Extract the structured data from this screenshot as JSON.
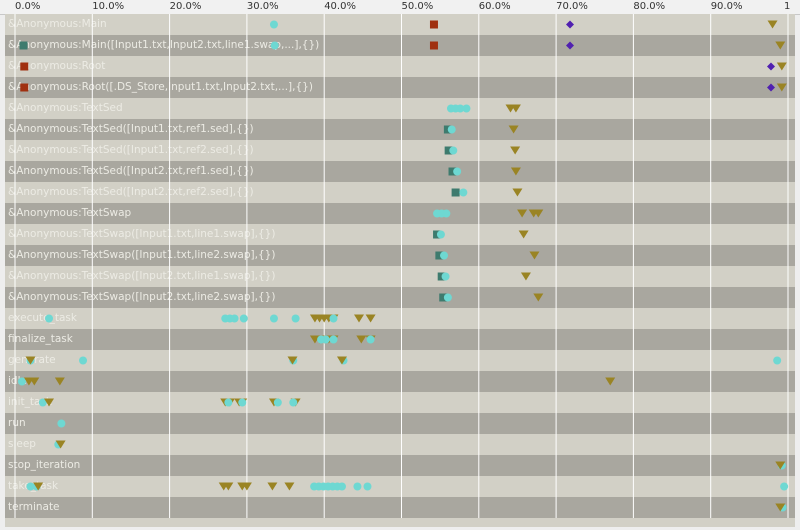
{
  "axis": {
    "ticks": [
      "0.0%",
      "10.0%",
      "20.0%",
      "30.0%",
      "40.0%",
      "50.0%",
      "60.0%",
      "70.0%",
      "80.0%",
      "90.0%",
      "1"
    ],
    "tick_values": [
      0,
      0.1,
      0.2,
      0.3,
      0.4,
      0.5,
      0.6,
      0.7,
      0.8,
      0.9,
      1.0
    ]
  },
  "colors": {
    "cyan": "#6ed8d2",
    "teal": "#3e7b6e",
    "gold": "#9a8424",
    "red": "#a03010",
    "purple": "#5020b0",
    "row_light": "#d2d0c6",
    "row_dark": "#a9a79f",
    "grid": "#ffffff",
    "label": "#ecebe4"
  },
  "rows": [
    {
      "label": "&Anonymous:Main",
      "marks": [
        {
          "s": "circle",
          "c": "cyan",
          "v": [
            0.335
          ]
        },
        {
          "s": "square",
          "c": "red",
          "v": [
            0.542
          ]
        },
        {
          "s": "diamond",
          "c": "purple",
          "v": [
            0.718
          ]
        },
        {
          "s": "triangle",
          "c": "gold",
          "v": [
            0.98
          ]
        }
      ]
    },
    {
      "label": "&Anonymous:Main([Input1.txt,Input2.txt,line1.swap,...],{})",
      "marks": [
        {
          "s": "square",
          "c": "teal",
          "v": [
            0.011
          ]
        },
        {
          "s": "circle",
          "c": "cyan",
          "v": [
            0.336
          ]
        },
        {
          "s": "square",
          "c": "red",
          "v": [
            0.542
          ]
        },
        {
          "s": "diamond",
          "c": "purple",
          "v": [
            0.718
          ]
        },
        {
          "s": "triangle",
          "c": "gold",
          "v": [
            0.99
          ]
        }
      ]
    },
    {
      "label": "&Anonymous:Root",
      "marks": [
        {
          "s": "square",
          "c": "red",
          "v": [
            0.012
          ]
        },
        {
          "s": "diamond",
          "c": "purple",
          "v": [
            0.978
          ]
        },
        {
          "s": "triangle",
          "c": "gold",
          "v": [
            0.992
          ]
        }
      ]
    },
    {
      "label": "&Anonymous:Root([.DS_Store,Input1.txt,Input2.txt,...],{})",
      "marks": [
        {
          "s": "square",
          "c": "red",
          "v": [
            0.012
          ]
        },
        {
          "s": "diamond",
          "c": "purple",
          "v": [
            0.978
          ]
        },
        {
          "s": "triangle",
          "c": "gold",
          "v": [
            0.992
          ]
        }
      ]
    },
    {
      "label": "&Anonymous:TextSed",
      "marks": [
        {
          "s": "circle",
          "c": "cyan",
          "v": [
            0.564,
            0.57,
            0.576,
            0.584
          ]
        },
        {
          "s": "triangle",
          "c": "gold",
          "v": [
            0.641,
            0.648
          ]
        }
      ]
    },
    {
      "label": "&Anonymous:TextSed([Input1.txt,ref1.sed],{})",
      "marks": [
        {
          "s": "square",
          "c": "teal",
          "v": [
            0.56
          ]
        },
        {
          "s": "circle",
          "c": "cyan",
          "v": [
            0.565
          ]
        },
        {
          "s": "triangle",
          "c": "gold",
          "v": [
            0.645
          ]
        }
      ]
    },
    {
      "label": "&Anonymous:TextSed([Input1.txt,ref2.sed],{})",
      "marks": [
        {
          "s": "square",
          "c": "teal",
          "v": [
            0.561
          ]
        },
        {
          "s": "circle",
          "c": "cyan",
          "v": [
            0.567
          ]
        },
        {
          "s": "triangle",
          "c": "gold",
          "v": [
            0.647
          ]
        }
      ]
    },
    {
      "label": "&Anonymous:TextSed([Input2.txt,ref1.sed],{})",
      "marks": [
        {
          "s": "square",
          "c": "teal",
          "v": [
            0.566
          ]
        },
        {
          "s": "circle",
          "c": "cyan",
          "v": [
            0.572
          ]
        },
        {
          "s": "triangle",
          "c": "gold",
          "v": [
            0.648
          ]
        }
      ]
    },
    {
      "label": "&Anonymous:TextSed([Input2.txt,ref2.sed],{})",
      "marks": [
        {
          "s": "square",
          "c": "teal",
          "v": [
            0.57
          ]
        },
        {
          "s": "circle",
          "c": "cyan",
          "v": [
            0.58
          ]
        },
        {
          "s": "triangle",
          "c": "gold",
          "v": [
            0.65
          ]
        }
      ]
    },
    {
      "label": "&Anonymous:TextSwap",
      "marks": [
        {
          "s": "circle",
          "c": "cyan",
          "v": [
            0.546,
            0.552,
            0.558
          ]
        },
        {
          "s": "triangle",
          "c": "gold",
          "v": [
            0.656,
            0.671,
            0.677
          ]
        }
      ]
    },
    {
      "label": "&Anonymous:TextSwap([Input1.txt,line1.swap],{})",
      "marks": [
        {
          "s": "square",
          "c": "teal",
          "v": [
            0.546
          ]
        },
        {
          "s": "circle",
          "c": "cyan",
          "v": [
            0.551
          ]
        },
        {
          "s": "triangle",
          "c": "gold",
          "v": [
            0.658
          ]
        }
      ]
    },
    {
      "label": "&Anonymous:TextSwap([Input1.txt,line2.swap],{})",
      "marks": [
        {
          "s": "square",
          "c": "teal",
          "v": [
            0.549
          ]
        },
        {
          "s": "circle",
          "c": "cyan",
          "v": [
            0.555
          ]
        },
        {
          "s": "triangle",
          "c": "gold",
          "v": [
            0.672
          ]
        }
      ]
    },
    {
      "label": "&Anonymous:TextSwap([Input2.txt,line1.swap],{})",
      "marks": [
        {
          "s": "square",
          "c": "teal",
          "v": [
            0.552
          ]
        },
        {
          "s": "circle",
          "c": "cyan",
          "v": [
            0.557
          ]
        },
        {
          "s": "triangle",
          "c": "gold",
          "v": [
            0.661
          ]
        }
      ]
    },
    {
      "label": "&Anonymous:TextSwap([Input2.txt,line2.swap],{})",
      "marks": [
        {
          "s": "square",
          "c": "teal",
          "v": [
            0.554
          ]
        },
        {
          "s": "circle",
          "c": "cyan",
          "v": [
            0.56
          ]
        },
        {
          "s": "triangle",
          "c": "gold",
          "v": [
            0.677
          ]
        }
      ]
    },
    {
      "label": "execute_task",
      "marks": [
        {
          "s": "circle",
          "c": "cyan",
          "v": [
            0.044,
            0.272,
            0.278,
            0.284,
            0.296,
            0.335,
            0.363
          ]
        },
        {
          "s": "triangle",
          "c": "gold",
          "v": [
            0.388,
            0.394,
            0.4,
            0.406,
            0.412,
            0.445,
            0.46
          ]
        },
        {
          "s": "circle",
          "c": "cyan",
          "v": [
            0.412
          ]
        }
      ]
    },
    {
      "label": "finalize_task",
      "marks": [
        {
          "s": "triangle",
          "c": "gold",
          "v": [
            0.388,
            0.394,
            0.4,
            0.406,
            0.412,
            0.448,
            0.46
          ]
        },
        {
          "s": "circle",
          "c": "cyan",
          "v": [
            0.396,
            0.402,
            0.412,
            0.46
          ]
        }
      ]
    },
    {
      "label": "generate",
      "marks": [
        {
          "s": "circle",
          "c": "cyan",
          "v": [
            0.02,
            0.088,
            0.36,
            0.425,
            0.986
          ]
        },
        {
          "s": "triangle",
          "c": "gold",
          "v": [
            0.02,
            0.359,
            0.423
          ]
        }
      ]
    },
    {
      "label": "idle",
      "marks": [
        {
          "s": "circle",
          "c": "cyan",
          "v": [
            0.009
          ]
        },
        {
          "s": "triangle",
          "c": "gold",
          "v": [
            0.018,
            0.025,
            0.058,
            0.77
          ]
        }
      ]
    },
    {
      "label": "init_task",
      "marks": [
        {
          "s": "circle",
          "c": "cyan",
          "v": [
            0.036
          ]
        },
        {
          "s": "triangle",
          "c": "gold",
          "v": [
            0.044,
            0.272,
            0.278,
            0.29,
            0.294,
            0.335,
            0.363
          ]
        },
        {
          "s": "circle",
          "c": "cyan",
          "v": [
            0.276,
            0.294,
            0.34,
            0.36
          ]
        }
      ]
    },
    {
      "label": "run",
      "marks": [
        {
          "s": "circle",
          "c": "cyan",
          "v": [
            0.06
          ]
        }
      ]
    },
    {
      "label": "sleep",
      "marks": [
        {
          "s": "circle",
          "c": "cyan",
          "v": [
            0.056
          ]
        },
        {
          "s": "triangle",
          "c": "gold",
          "v": [
            0.059
          ]
        }
      ]
    },
    {
      "label": "stop_iteration",
      "marks": [
        {
          "s": "circle",
          "c": "cyan",
          "v": [
            0.992
          ]
        },
        {
          "s": "triangle",
          "c": "gold",
          "v": [
            0.99
          ]
        }
      ]
    },
    {
      "label": "take_task",
      "marks": [
        {
          "s": "circle",
          "c": "cyan",
          "v": [
            0.02,
            0.028,
            0.387,
            0.393,
            0.399,
            0.405,
            0.411,
            0.417,
            0.423,
            0.443,
            0.456,
            0.995
          ]
        },
        {
          "s": "triangle",
          "c": "gold",
          "v": [
            0.03,
            0.27,
            0.276,
            0.294,
            0.3,
            0.333,
            0.355
          ]
        }
      ]
    },
    {
      "label": "terminate",
      "marks": [
        {
          "s": "circle",
          "c": "cyan",
          "v": [
            0.993
          ]
        },
        {
          "s": "triangle",
          "c": "gold",
          "v": [
            0.99
          ]
        }
      ]
    }
  ]
}
